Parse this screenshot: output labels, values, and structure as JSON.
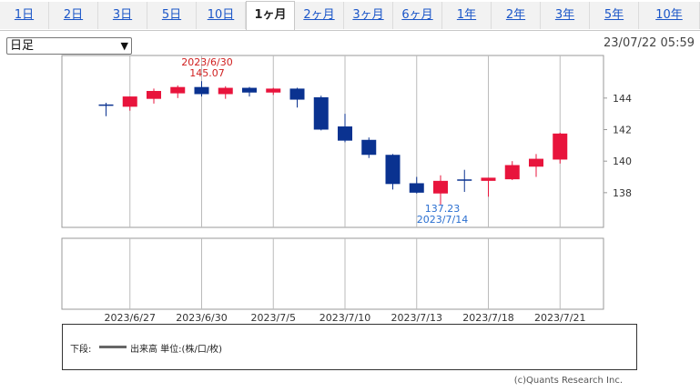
{
  "tabs": [
    "1日",
    "2日",
    "3日",
    "5日",
    "10日",
    "1ヶ月",
    "2ヶ月",
    "3ヶ月",
    "6ヶ月",
    "1年",
    "2年",
    "3年",
    "5年",
    "10年"
  ],
  "active_tab": "1ヶ月",
  "period_select": {
    "value": "日足"
  },
  "timestamp": "23/07/22 05:59",
  "legend": {
    "label": "下段:",
    "text": "出来高 単位:(株/口/枚)"
  },
  "copyright": "(c)Quants Research Inc.",
  "colors": {
    "up": "#e8143c",
    "down": "#0a3290",
    "high_label": "#d02020",
    "low_label": "#2a6fd0",
    "grid": "#bbbbbb"
  },
  "chart_data": {
    "type": "candlestick",
    "x_tick_labels": [
      "2023/6/27",
      "2023/6/30",
      "2023/7/5",
      "2023/7/10",
      "2023/7/13",
      "2023/7/18",
      "2023/7/21"
    ],
    "y_tick_labels": [
      138,
      140,
      142,
      144
    ],
    "ylim": [
      135.8,
      146.7
    ],
    "candles": [
      {
        "open": 143.55,
        "high": 143.7,
        "low": 142.85,
        "close": 143.45
      },
      {
        "open": 143.45,
        "high": 144.1,
        "low": 143.2,
        "close": 144.1
      },
      {
        "open": 143.95,
        "high": 144.6,
        "low": 143.65,
        "close": 144.45
      },
      {
        "open": 144.3,
        "high": 144.8,
        "low": 144.0,
        "close": 144.7
      },
      {
        "open": 144.7,
        "high": 145.07,
        "low": 144.1,
        "close": 144.25
      },
      {
        "open": 144.25,
        "high": 144.75,
        "low": 143.95,
        "close": 144.65
      },
      {
        "open": 144.65,
        "high": 144.7,
        "low": 144.1,
        "close": 144.35
      },
      {
        "open": 144.35,
        "high": 144.65,
        "low": 144.2,
        "close": 144.6
      },
      {
        "open": 144.6,
        "high": 144.65,
        "low": 143.4,
        "close": 143.9
      },
      {
        "open": 144.05,
        "high": 144.15,
        "low": 141.95,
        "close": 142.0
      },
      {
        "open": 142.2,
        "high": 143.0,
        "low": 141.2,
        "close": 141.3
      },
      {
        "open": 141.35,
        "high": 141.5,
        "low": 140.2,
        "close": 140.4
      },
      {
        "open": 140.4,
        "high": 140.45,
        "low": 138.2,
        "close": 138.55
      },
      {
        "open": 138.6,
        "high": 139.0,
        "low": 137.95,
        "close": 138.0
      },
      {
        "open": 137.95,
        "high": 139.1,
        "low": 137.23,
        "close": 138.75
      },
      {
        "open": 138.8,
        "high": 139.45,
        "low": 138.05,
        "close": 138.75
      },
      {
        "open": 138.75,
        "high": 138.95,
        "low": 137.75,
        "close": 138.95
      },
      {
        "open": 138.85,
        "high": 140.0,
        "low": 138.8,
        "close": 139.75
      },
      {
        "open": 139.65,
        "high": 140.45,
        "low": 139.0,
        "close": 140.15
      },
      {
        "open": 140.1,
        "high": 141.8,
        "low": 139.85,
        "close": 141.75
      }
    ],
    "annotations": {
      "high": {
        "date": "2023/6/30",
        "value": "145.07",
        "index": 4
      },
      "low": {
        "date": "2023/7/14",
        "value": "137.23",
        "index": 14
      }
    },
    "grid": true,
    "lower_panel": "volume"
  }
}
